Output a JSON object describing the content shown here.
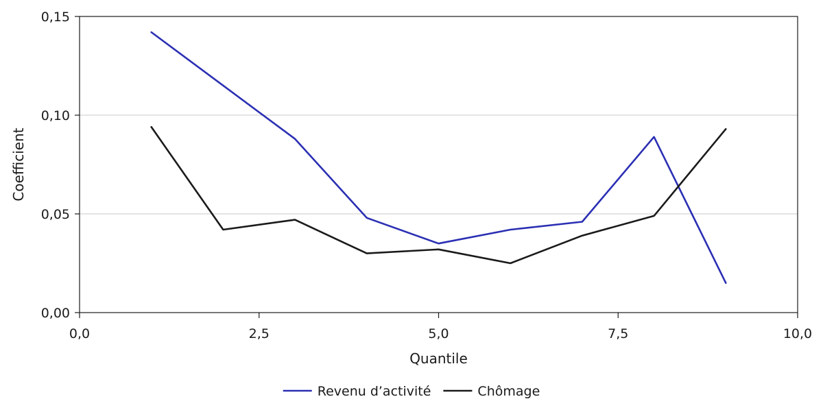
{
  "chart_data": {
    "type": "line",
    "xlabel": "Quantile",
    "ylabel": "Coefficient",
    "xlim": [
      0,
      10
    ],
    "ylim": [
      0,
      0.15
    ],
    "x_ticks": [
      0,
      2.5,
      5,
      7.5,
      10
    ],
    "x_tick_labels": [
      "0,0",
      "2,5",
      "5,0",
      "7,5",
      "10,0"
    ],
    "y_ticks": [
      0,
      0.05,
      0.1,
      0.15
    ],
    "y_tick_labels": [
      "0,00",
      "0,05",
      "0,10",
      "0,15"
    ],
    "grid": "horizontal",
    "legend_position": "bottom",
    "series": [
      {
        "name": "Revenu d’activité",
        "color": "#2b2fb3",
        "x": [
          1,
          2,
          3,
          4,
          5,
          6,
          7,
          8,
          9
        ],
        "y": [
          0.142,
          0.115,
          0.088,
          0.048,
          0.035,
          0.042,
          0.046,
          0.089,
          0.015
        ]
      },
      {
        "name": "Chômage",
        "color": "#1a1a1a",
        "x": [
          1,
          2,
          3,
          4,
          5,
          6,
          7,
          8,
          9
        ],
        "y": [
          0.094,
          0.042,
          0.047,
          0.03,
          0.032,
          0.025,
          0.039,
          0.049,
          0.093
        ]
      }
    ]
  }
}
